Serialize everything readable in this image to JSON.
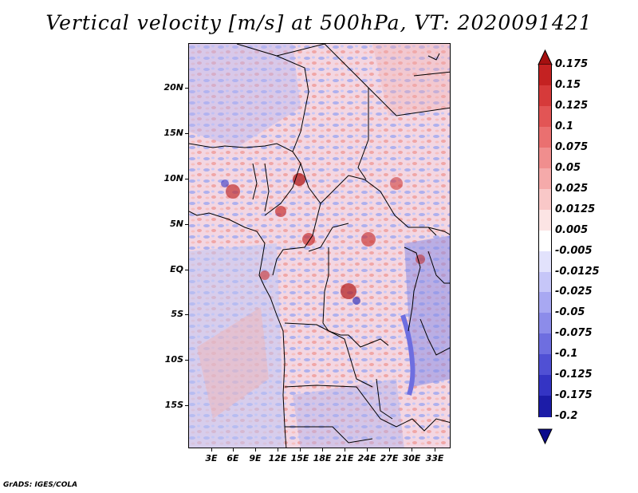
{
  "title": "Vertical velocity [m/s] at 500hPa, VT: 2020091421",
  "footer": "GrADS: IGES/COLA",
  "map": {
    "lat_labels": [
      "20N",
      "15N",
      "10N",
      "5N",
      "EQ",
      "5S",
      "10S",
      "15S"
    ],
    "lon_labels": [
      "3E",
      "6E",
      "9E",
      "12E",
      "15E",
      "18E",
      "21E",
      "24E",
      "27E",
      "30E",
      "33E"
    ]
  },
  "colorbar": {
    "labels": [
      "0.175",
      "0.15",
      "0.125",
      "0.1",
      "0.075",
      "0.05",
      "0.025",
      "0.0125",
      "0.005",
      "-0.005",
      "-0.0125",
      "-0.025",
      "-0.05",
      "-0.075",
      "-0.1",
      "-0.125",
      "-0.175",
      "-0.2"
    ],
    "colors": [
      "#b01010",
      "#c42222",
      "#d63a3a",
      "#e25555",
      "#ea7070",
      "#f08e8e",
      "#f5aaaa",
      "#f9c8c8",
      "#fce4e4",
      "#ffffff",
      "#e2e2fc",
      "#c6c6f8",
      "#a8a8f2",
      "#8c8cea",
      "#6e6ee0",
      "#5050d4",
      "#3434c4",
      "#1c1ca8",
      "#0a0a8c"
    ]
  }
}
